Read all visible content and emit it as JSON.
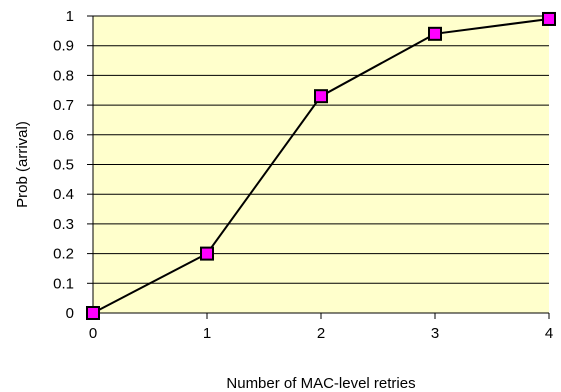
{
  "chart_data": {
    "type": "line",
    "title": "",
    "xlabel": "Number of MAC-level retries",
    "ylabel": "Prob (arrival)",
    "x": [
      0,
      1,
      2,
      3,
      4
    ],
    "series": [
      {
        "values": [
          0,
          0.2,
          0.73,
          0.94,
          0.99
        ]
      }
    ],
    "xlim": [
      0,
      4
    ],
    "ylim": [
      0,
      1
    ],
    "xticks": [
      "0",
      "1",
      "2",
      "3",
      "4"
    ],
    "yticks": [
      "0",
      "0.1",
      "0.2",
      "0.3",
      "0.4",
      "0.5",
      "0.6",
      "0.7",
      "0.8",
      "0.9",
      "1"
    ],
    "grid": "horizontal",
    "legend": "none",
    "colors": {
      "plot_background": "#FFFFCC",
      "line": "#000000",
      "marker_fill": "#FF00FF",
      "marker_stroke": "#000000",
      "gridline": "#000000"
    }
  }
}
